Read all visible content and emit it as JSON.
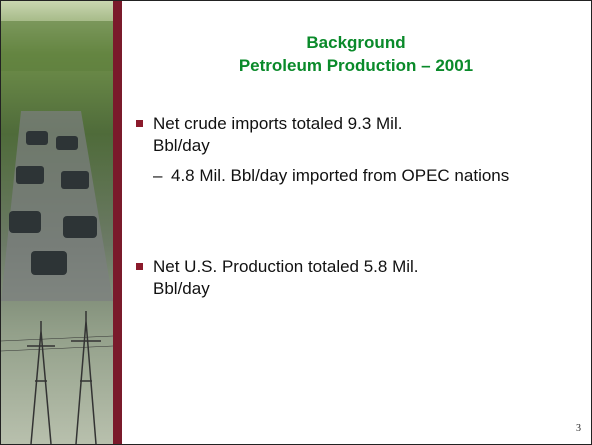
{
  "slide": {
    "title": [
      "Background",
      "Petroleum Production – 2001"
    ],
    "bullets": [
      {
        "text": "Net crude imports totaled 9.3 Mil. Bbl/day",
        "sub": [
          "4.8 Mil. Bbl/day imported from OPEC nations"
        ]
      },
      {
        "text": "Net U.S. Production totaled 5.8 Mil. Bbl/day"
      }
    ],
    "page_number": "3"
  }
}
